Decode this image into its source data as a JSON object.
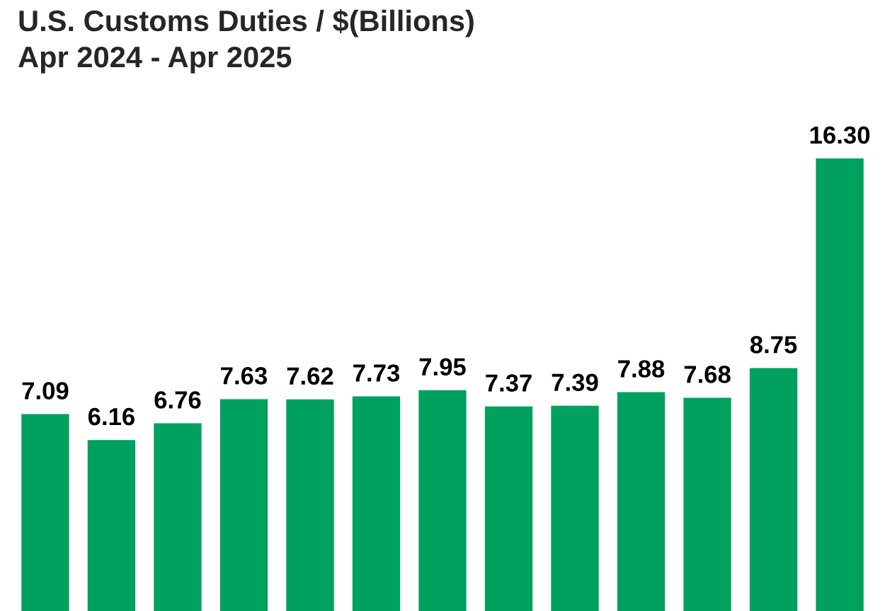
{
  "chart_data": {
    "type": "bar",
    "title": "U.S. Customs Duties / $(Billions)",
    "subtitle": "Apr 2024 - Apr 2025",
    "categories": [
      null,
      null,
      null,
      null,
      null,
      null,
      null,
      null,
      null,
      null,
      null,
      null,
      null
    ],
    "values": [
      7.09,
      6.16,
      6.76,
      7.63,
      7.62,
      7.73,
      7.95,
      7.37,
      7.39,
      7.88,
      7.68,
      8.75,
      16.3
    ],
    "value_labels": [
      "7.09",
      "6.16",
      "6.76",
      "7.63",
      "7.62",
      "7.73",
      "7.95",
      "7.37",
      "7.39",
      "7.88",
      "7.68",
      "8.75",
      "16.30"
    ],
    "color": "#00a05e",
    "grid": false
  }
}
